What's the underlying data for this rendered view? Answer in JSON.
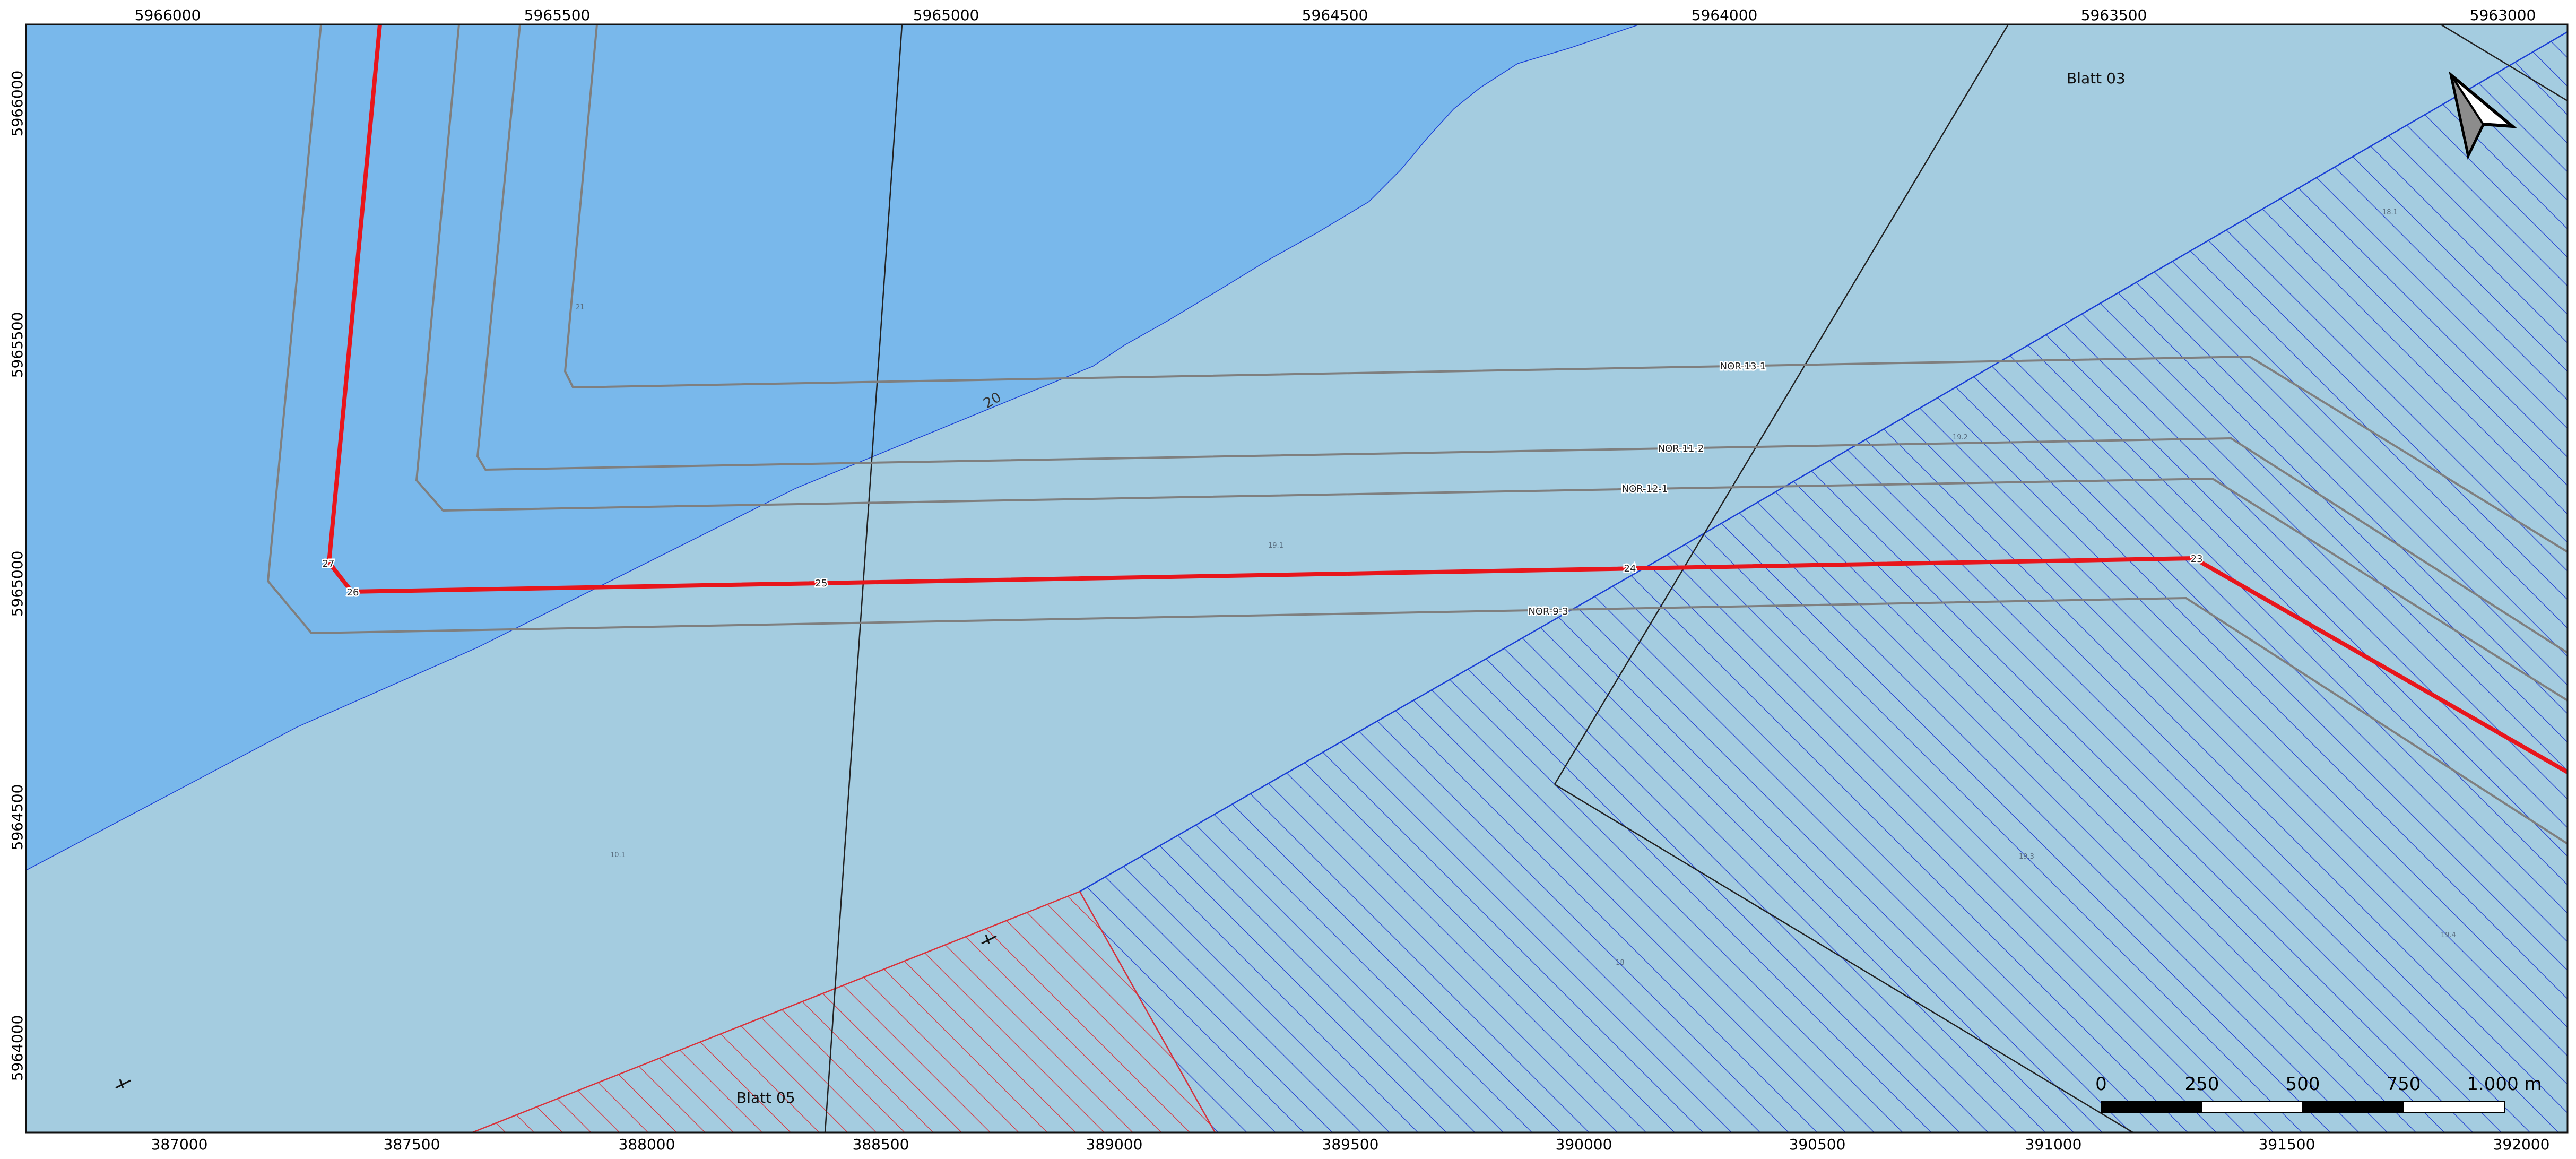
{
  "map": {
    "top_coordinate_labels": [
      "5966000",
      "5965500",
      "5965000",
      "5964500",
      "5964000",
      "5963500",
      "5963000"
    ],
    "left_coordinate_labels": [
      "5966000",
      "5965500",
      "5965000",
      "5964500",
      "5964000"
    ],
    "bottom_coordinate_labels": [
      "387000",
      "387500",
      "388000",
      "388500",
      "389000",
      "389500",
      "390000",
      "390500",
      "391000",
      "391500",
      "392000"
    ],
    "sheet_labels": {
      "blatt_03": "Blatt 03",
      "blatt_05": "Blatt 05"
    },
    "cable_labels": {
      "nor_13_1": "NOR-13-1",
      "nor_11_2": "NOR-11-2",
      "nor_12_1": "NOR-12-1",
      "nor_9_3": "NOR-9-3"
    },
    "route_point_labels": {
      "p23": "23",
      "p24": "24",
      "p25": "25",
      "p26": "26",
      "p27": "27"
    },
    "zone_labels": {
      "z1": "20",
      "z2": "19.1",
      "z3": "10.1",
      "z4": "21",
      "z5": "18.1",
      "z6": "19.2",
      "z7": "19.3",
      "z8": "19.4",
      "z9": "18"
    },
    "scale_bar": {
      "labels": [
        "0",
        "250",
        "500",
        "750",
        "1.000 m"
      ]
    },
    "colors": {
      "deep_water": "#79b8eb",
      "shallow_water": "#a4cce0",
      "route": "#e8161c",
      "cable": "#7f7f7f",
      "blue_boundary": "#1a3fd6",
      "red_hatch": "#d9323a"
    },
    "icons": [
      "north-arrow-icon",
      "wreck-icon"
    ]
  }
}
